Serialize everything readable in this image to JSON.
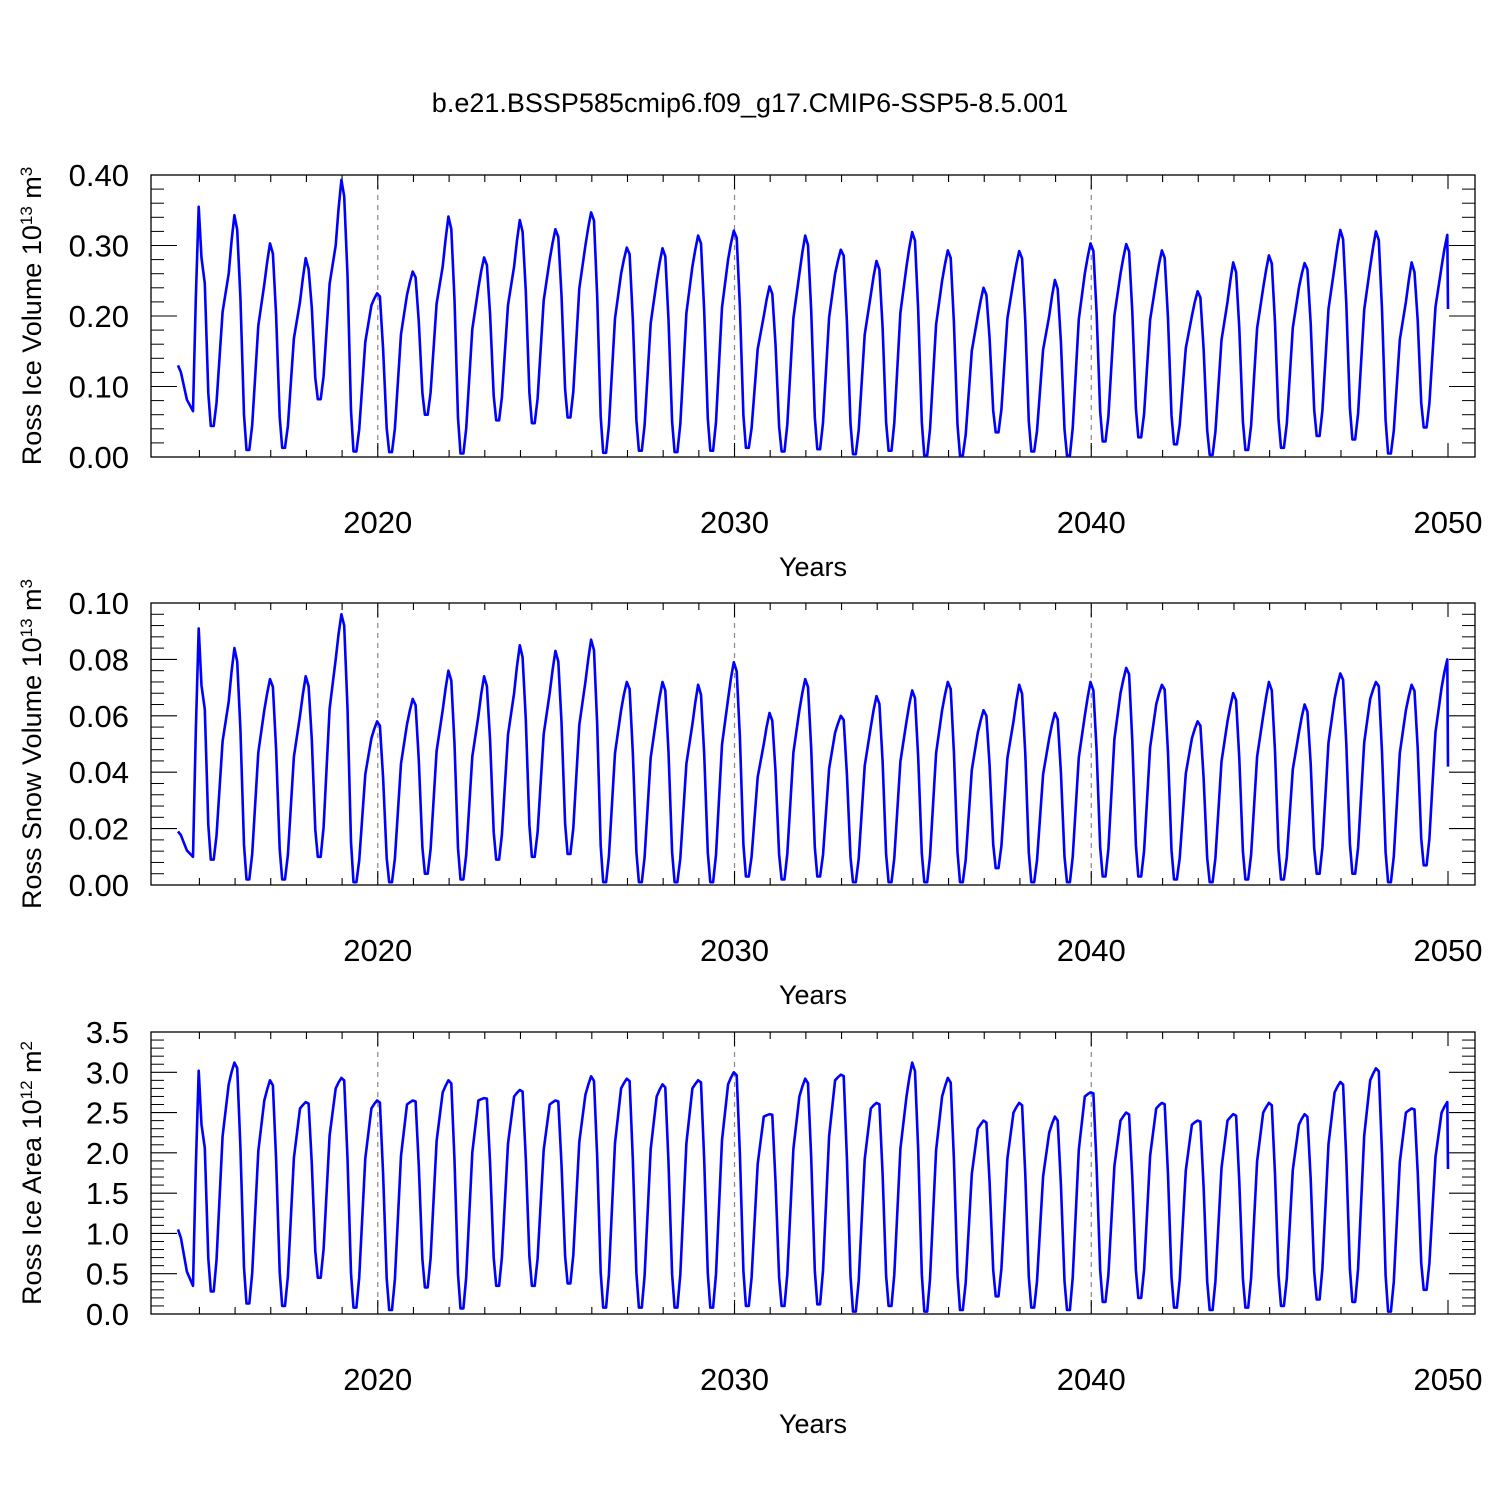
{
  "title": "b.e21.BSSP585cmip6.f09_g17.CMIP6-SSP5-8.5.001",
  "colors": {
    "series": "#0000ff",
    "axis": "#000000",
    "ref_line": "#888888"
  },
  "chart_data": [
    {
      "type": "line",
      "xlabel": "Years",
      "ylabel_main": "Ross Ice Volume 10",
      "ylabel_exp": "13",
      "ylabel_unit": " m",
      "ylabel_unit_exp": "3",
      "xlim": [
        2014.4,
        2050.0
      ],
      "ylim": [
        0.0,
        0.4
      ],
      "xticks": [
        "2020",
        "2030",
        "2040",
        "2050"
      ],
      "yticks": [
        "0.00",
        "0.10",
        "0.20",
        "0.30",
        "0.40"
      ],
      "reference_lines_x": [
        2020,
        2030,
        2040
      ],
      "cycles": [
        [
          0.13,
          0.065,
          0.355,
          0.044
        ],
        [
          0.044,
          0.26,
          0.343,
          0.01
        ],
        [
          0.01,
          0.245,
          0.303,
          0.013
        ],
        [
          0.013,
          0.22,
          0.282,
          0.082
        ],
        [
          0.082,
          0.3,
          0.393,
          0.008
        ],
        [
          0.008,
          0.215,
          0.232,
          0.007
        ],
        [
          0.007,
          0.23,
          0.263,
          0.06
        ],
        [
          0.06,
          0.27,
          0.341,
          0.005
        ],
        [
          0.005,
          0.24,
          0.283,
          0.052
        ],
        [
          0.052,
          0.27,
          0.336,
          0.048
        ],
        [
          0.048,
          0.28,
          0.323,
          0.056
        ],
        [
          0.056,
          0.3,
          0.347,
          0.006
        ],
        [
          0.006,
          0.26,
          0.297,
          0.009
        ],
        [
          0.009,
          0.25,
          0.296,
          0.007
        ],
        [
          0.007,
          0.27,
          0.314,
          0.009
        ],
        [
          0.009,
          0.28,
          0.321,
          0.013
        ],
        [
          0.013,
          0.2,
          0.242,
          0.008
        ],
        [
          0.008,
          0.26,
          0.314,
          0.011
        ],
        [
          0.011,
          0.26,
          0.294,
          0.004
        ],
        [
          0.004,
          0.23,
          0.278,
          0.009
        ],
        [
          0.009,
          0.27,
          0.319,
          0.002
        ],
        [
          0.002,
          0.25,
          0.293,
          0.002
        ],
        [
          0.002,
          0.2,
          0.24,
          0.035
        ],
        [
          0.035,
          0.25,
          0.292,
          0.008
        ],
        [
          0.008,
          0.2,
          0.251,
          0.002
        ],
        [
          0.002,
          0.26,
          0.303,
          0.022
        ],
        [
          0.022,
          0.26,
          0.302,
          0.028
        ],
        [
          0.028,
          0.25,
          0.293,
          0.018
        ],
        [
          0.018,
          0.2,
          0.235,
          0.003
        ],
        [
          0.003,
          0.22,
          0.276,
          0.01
        ],
        [
          0.01,
          0.24,
          0.286,
          0.013
        ],
        [
          0.013,
          0.24,
          0.275,
          0.03
        ],
        [
          0.03,
          0.27,
          0.322,
          0.025
        ],
        [
          0.025,
          0.27,
          0.32,
          0.005
        ],
        [
          0.005,
          0.22,
          0.276,
          0.042
        ],
        [
          0.042,
          0.27,
          0.315,
          0.21
        ]
      ]
    },
    {
      "type": "line",
      "xlabel": "Years",
      "ylabel_main": "Ross Snow Volume 10",
      "ylabel_exp": "13",
      "ylabel_unit": " m",
      "ylabel_unit_exp": "3",
      "xlim": [
        2014.4,
        2050.0
      ],
      "ylim": [
        0.0,
        0.1
      ],
      "xticks": [
        "2020",
        "2030",
        "2040",
        "2050"
      ],
      "yticks": [
        "0.00",
        "0.02",
        "0.04",
        "0.06",
        "0.08",
        "0.10"
      ],
      "reference_lines_x": [
        2020,
        2030,
        2040
      ],
      "cycles": [
        [
          0.019,
          0.01,
          0.091,
          0.009
        ],
        [
          0.009,
          0.065,
          0.084,
          0.002
        ],
        [
          0.002,
          0.062,
          0.073,
          0.002
        ],
        [
          0.002,
          0.06,
          0.074,
          0.01
        ],
        [
          0.01,
          0.08,
          0.096,
          0.001
        ],
        [
          0.001,
          0.052,
          0.058,
          0.001
        ],
        [
          0.001,
          0.057,
          0.066,
          0.004
        ],
        [
          0.004,
          0.062,
          0.076,
          0.002
        ],
        [
          0.002,
          0.06,
          0.074,
          0.009
        ],
        [
          0.009,
          0.068,
          0.085,
          0.01
        ],
        [
          0.01,
          0.068,
          0.083,
          0.011
        ],
        [
          0.011,
          0.072,
          0.087,
          0.001
        ],
        [
          0.001,
          0.062,
          0.072,
          0.001
        ],
        [
          0.001,
          0.06,
          0.072,
          0.001
        ],
        [
          0.001,
          0.057,
          0.071,
          0.001
        ],
        [
          0.001,
          0.066,
          0.079,
          0.003
        ],
        [
          0.003,
          0.05,
          0.061,
          0.002
        ],
        [
          0.002,
          0.062,
          0.073,
          0.003
        ],
        [
          0.003,
          0.054,
          0.06,
          0.001
        ],
        [
          0.001,
          0.056,
          0.067,
          0.001
        ],
        [
          0.001,
          0.058,
          0.069,
          0.001
        ],
        [
          0.001,
          0.062,
          0.072,
          0.001
        ],
        [
          0.001,
          0.054,
          0.062,
          0.006
        ],
        [
          0.006,
          0.058,
          0.071,
          0.001
        ],
        [
          0.001,
          0.052,
          0.061,
          0.001
        ],
        [
          0.001,
          0.06,
          0.072,
          0.003
        ],
        [
          0.003,
          0.068,
          0.077,
          0.003
        ],
        [
          0.003,
          0.064,
          0.071,
          0.002
        ],
        [
          0.002,
          0.052,
          0.058,
          0.001
        ],
        [
          0.001,
          0.058,
          0.068,
          0.002
        ],
        [
          0.002,
          0.06,
          0.072,
          0.002
        ],
        [
          0.002,
          0.054,
          0.064,
          0.004
        ],
        [
          0.004,
          0.066,
          0.075,
          0.004
        ],
        [
          0.004,
          0.066,
          0.072,
          0.001
        ],
        [
          0.001,
          0.062,
          0.071,
          0.007
        ],
        [
          0.007,
          0.07,
          0.08,
          0.042
        ]
      ]
    },
    {
      "type": "line",
      "xlabel": "Years",
      "ylabel_main": "Ross Ice Area 10",
      "ylabel_exp": "12",
      "ylabel_unit": " m",
      "ylabel_unit_exp": "2",
      "xlim": [
        2014.4,
        2050.0
      ],
      "ylim": [
        0.0,
        3.5
      ],
      "xticks": [
        "2020",
        "2030",
        "2040",
        "2050"
      ],
      "yticks": [
        "0.0",
        "0.5",
        "1.0",
        "1.5",
        "2.0",
        "2.5",
        "3.0",
        "3.5"
      ],
      "reference_lines_x": [
        2020,
        2030,
        2040
      ],
      "cycles": [
        [
          1.05,
          0.35,
          3.02,
          0.28
        ],
        [
          0.28,
          2.85,
          3.12,
          0.13
        ],
        [
          0.13,
          2.65,
          2.9,
          0.1
        ],
        [
          0.1,
          2.55,
          2.63,
          0.45
        ],
        [
          0.45,
          2.8,
          2.93,
          0.08
        ],
        [
          0.08,
          2.55,
          2.65,
          0.05
        ],
        [
          0.05,
          2.6,
          2.65,
          0.33
        ],
        [
          0.33,
          2.75,
          2.9,
          0.07
        ],
        [
          0.07,
          2.65,
          2.68,
          0.35
        ],
        [
          0.35,
          2.7,
          2.78,
          0.35
        ],
        [
          0.35,
          2.6,
          2.65,
          0.38
        ],
        [
          0.38,
          2.72,
          2.95,
          0.08
        ],
        [
          0.08,
          2.8,
          2.92,
          0.08
        ],
        [
          0.08,
          2.7,
          2.85,
          0.08
        ],
        [
          0.08,
          2.8,
          2.9,
          0.08
        ],
        [
          0.08,
          2.85,
          3.0,
          0.1
        ],
        [
          0.1,
          2.45,
          2.48,
          0.1
        ],
        [
          0.1,
          2.7,
          2.92,
          0.12
        ],
        [
          0.12,
          2.9,
          2.97,
          0.03
        ],
        [
          0.03,
          2.55,
          2.62,
          0.1
        ],
        [
          0.1,
          2.7,
          3.12,
          0.03
        ],
        [
          0.03,
          2.7,
          2.93,
          0.05
        ],
        [
          0.05,
          2.3,
          2.4,
          0.22
        ],
        [
          0.22,
          2.5,
          2.62,
          0.08
        ],
        [
          0.08,
          2.25,
          2.45,
          0.05
        ],
        [
          0.05,
          2.7,
          2.75,
          0.15
        ],
        [
          0.15,
          2.4,
          2.5,
          0.2
        ],
        [
          0.2,
          2.55,
          2.62,
          0.08
        ],
        [
          0.08,
          2.35,
          2.4,
          0.05
        ],
        [
          0.05,
          2.4,
          2.48,
          0.08
        ],
        [
          0.08,
          2.5,
          2.62,
          0.1
        ],
        [
          0.1,
          2.35,
          2.48,
          0.18
        ],
        [
          0.18,
          2.75,
          2.88,
          0.15
        ],
        [
          0.15,
          2.9,
          3.05,
          0.03
        ],
        [
          0.03,
          2.5,
          2.55,
          0.3
        ],
        [
          0.3,
          2.5,
          2.63,
          1.8
        ]
      ]
    }
  ]
}
